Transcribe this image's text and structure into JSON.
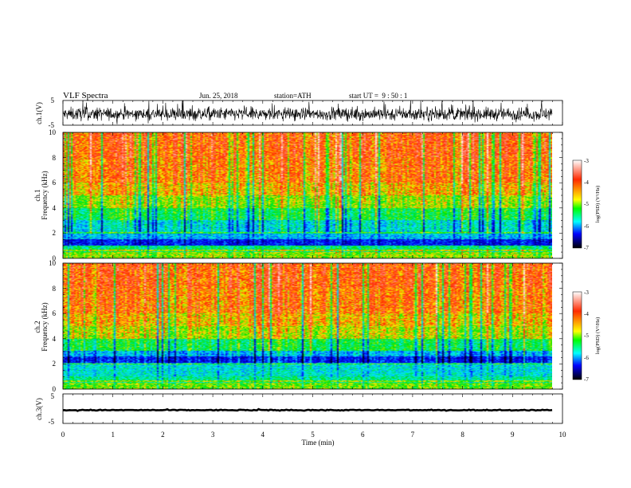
{
  "header": {
    "title": "VLF Spectra",
    "date": "Jun. 25, 2018",
    "station": "station=ATH",
    "start": "start UT =  9 : 50 : 1"
  },
  "chart_data": [
    {
      "type": "line",
      "panel": "ch1-waveform",
      "ylabel": "ch.1(V)",
      "ylim": [
        -5,
        5
      ],
      "y_ticks": [
        "5",
        "-5"
      ],
      "xlim": [
        0,
        10
      ],
      "mean_value": -0.5,
      "noise_amplitude_approx": 2.5
    },
    {
      "type": "heatmap",
      "panel": "ch1-spectrogram",
      "ylabel_lines": [
        "ch.1",
        "Frequency (kHz)"
      ],
      "ylim": [
        0,
        10
      ],
      "y_ticks": [
        "0",
        "2",
        "4",
        "6",
        "8",
        "10"
      ],
      "xlim": [
        0,
        10
      ],
      "band_summary": [
        {
          "freq_khz": [
            0.0,
            0.5
          ],
          "level": -4.5
        },
        {
          "freq_khz": [
            0.5,
            1.0
          ],
          "level": -5.0
        },
        {
          "freq_khz": [
            1.0,
            1.5
          ],
          "level": -6.0
        },
        {
          "freq_khz": [
            1.5,
            2.0
          ],
          "level": -5.5
        },
        {
          "freq_khz": [
            2.0,
            3.0
          ],
          "level": -5.3
        },
        {
          "freq_khz": [
            3.0,
            4.0
          ],
          "level": -4.9
        },
        {
          "freq_khz": [
            4.0,
            5.0
          ],
          "level": -4.5
        },
        {
          "freq_khz": [
            5.0,
            6.0
          ],
          "level": -4.2
        },
        {
          "freq_khz": [
            6.0,
            8.0
          ],
          "level": -4.0
        },
        {
          "freq_khz": [
            8.0,
            10.0
          ],
          "level": -3.9
        }
      ],
      "colorbar": {
        "label": "log(PSD) (V²/Hz)",
        "range": [
          -7,
          -3
        ],
        "ticks": [
          "-3",
          "-4",
          "-5",
          "-6",
          "-7"
        ],
        "colors": [
          "#ffffff",
          "#ff2a00",
          "#ffff00",
          "#00ff00",
          "#00ffff",
          "#0000ff",
          "#000000"
        ]
      }
    },
    {
      "type": "heatmap",
      "panel": "ch2-spectrogram",
      "ylabel_lines": [
        "ch.2",
        "Frequency (kHz)"
      ],
      "ylim": [
        0,
        10
      ],
      "y_ticks": [
        "0",
        "2",
        "4",
        "6",
        "8",
        "10"
      ],
      "xlim": [
        0,
        10
      ],
      "band_summary": [
        {
          "freq_khz": [
            0.0,
            0.5
          ],
          "level": -4.6
        },
        {
          "freq_khz": [
            0.5,
            1.0
          ],
          "level": -5.1
        },
        {
          "freq_khz": [
            1.0,
            2.0
          ],
          "level": -5.3
        },
        {
          "freq_khz": [
            2.0,
            2.6
          ],
          "level": -6.0
        },
        {
          "freq_khz": [
            2.6,
            3.0
          ],
          "level": -5.5
        },
        {
          "freq_khz": [
            3.0,
            4.0
          ],
          "level": -4.9
        },
        {
          "freq_khz": [
            4.0,
            5.0
          ],
          "level": -4.4
        },
        {
          "freq_khz": [
            5.0,
            6.0
          ],
          "level": -4.2
        },
        {
          "freq_khz": [
            6.0,
            8.0
          ],
          "level": -4.0
        },
        {
          "freq_khz": [
            8.0,
            10.0
          ],
          "level": -3.9
        }
      ],
      "colorbar": {
        "label": "log(PSD) (V²/Hz)",
        "range": [
          -7,
          -3
        ],
        "ticks": [
          "-3",
          "-4",
          "-5",
          "-6",
          "-7"
        ],
        "colors": [
          "#ffffff",
          "#ff2a00",
          "#ffff00",
          "#00ff00",
          "#00ffff",
          "#0000ff",
          "#000000"
        ]
      }
    },
    {
      "type": "line",
      "panel": "ch3-waveform",
      "ylabel": "ch.3(V)",
      "ylim": [
        -5,
        5
      ],
      "y_ticks": [
        "5",
        "-5"
      ],
      "xlim": [
        0,
        10
      ],
      "mean_value": -0.5,
      "noise_amplitude_approx": 0.15,
      "xlabel": "Time (min)",
      "x_ticks": [
        "0",
        "1",
        "2",
        "3",
        "4",
        "5",
        "6",
        "7",
        "8",
        "9",
        "10"
      ]
    }
  ]
}
